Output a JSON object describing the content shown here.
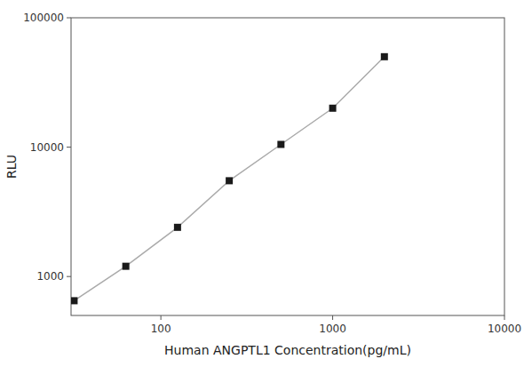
{
  "chart_data": {
    "type": "line",
    "x_label": "Human ANGPTL1 Concentration(pg/mL)",
    "y_label": "RLU",
    "x": [
      31.25,
      62.5,
      125,
      250,
      500,
      1000,
      2000
    ],
    "series": [
      {
        "type": "line",
        "color": "#aaaaaa",
        "values": [
          650,
          1200,
          2400,
          5500,
          10500,
          20000,
          50000
        ]
      },
      {
        "type": "scatter",
        "color": "#1a1a1a",
        "marker": "square",
        "values": [
          650,
          1200,
          2400,
          5500,
          10500,
          20000,
          50000
        ]
      }
    ],
    "log": true,
    "xlim": [
      30,
      10000
    ],
    "ylim": [
      500,
      100000
    ],
    "xticks": [
      100,
      1000,
      10000
    ],
    "yticks": [
      1000,
      10000,
      100000
    ],
    "grid": false
  }
}
